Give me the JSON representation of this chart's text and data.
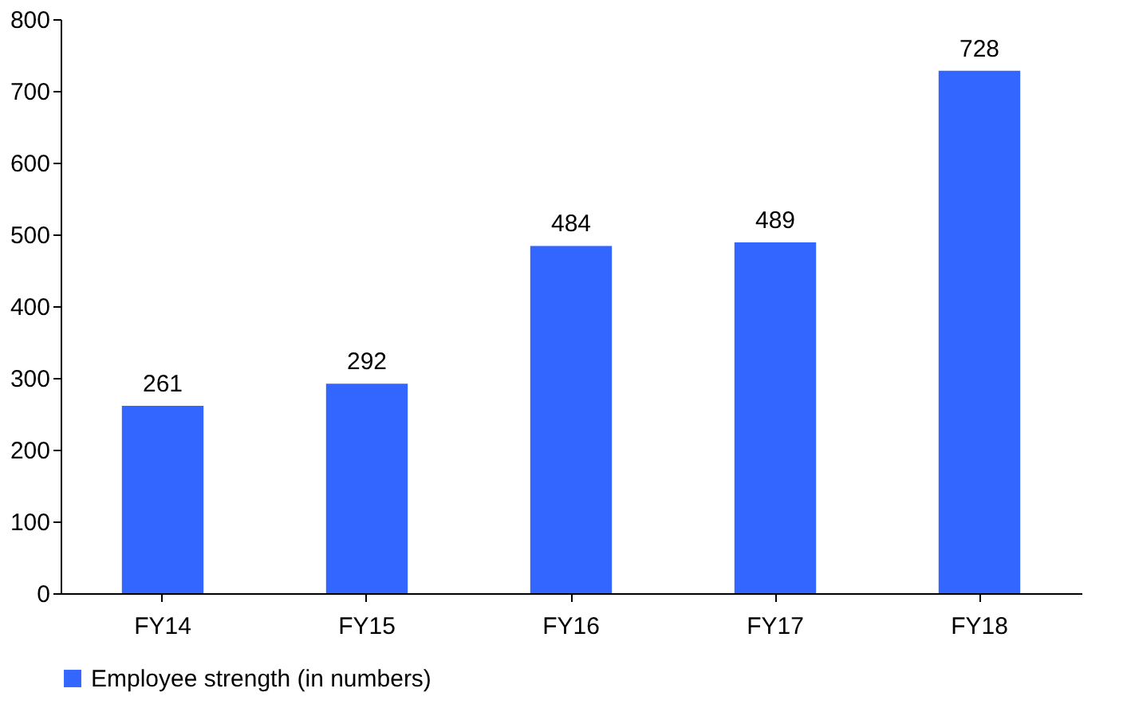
{
  "chart_data": {
    "type": "bar",
    "categories": [
      "FY14",
      "FY15",
      "FY16",
      "FY17",
      "FY18"
    ],
    "series": [
      {
        "name": "Employee strength (in numbers)",
        "color": "#3366ff",
        "values": [
          261,
          292,
          484,
          489,
          728
        ]
      }
    ],
    "ylim": [
      0,
      800
    ],
    "yticks": [
      0,
      100,
      200,
      300,
      400,
      500,
      600,
      700,
      800
    ],
    "data_labels": true,
    "legend": "bottom"
  }
}
